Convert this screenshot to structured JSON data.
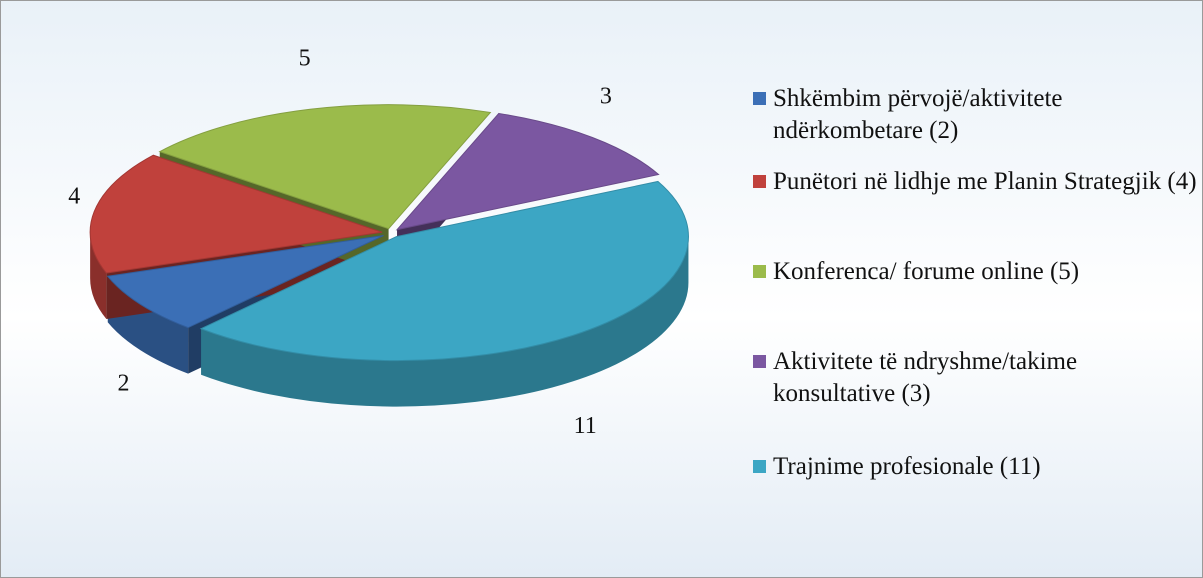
{
  "chart_data": {
    "type": "pie",
    "categories": [
      "Shkëmbim përvojë/aktivitete ndërkombetare  (2)",
      "Punëtori në lidhje me Planin Strategjik (4)",
      "Konferenca/ forume  online (5)",
      "Aktivitete të ndryshme/takime konsultative (3)",
      "Trajnime profesionale (11)"
    ],
    "values": [
      2,
      4,
      5,
      3,
      11
    ],
    "colors": [
      "#3b6fb6",
      "#c0413c",
      "#9bbb4b",
      "#7b57a1",
      "#3ca6c4"
    ],
    "legend": "right"
  }
}
